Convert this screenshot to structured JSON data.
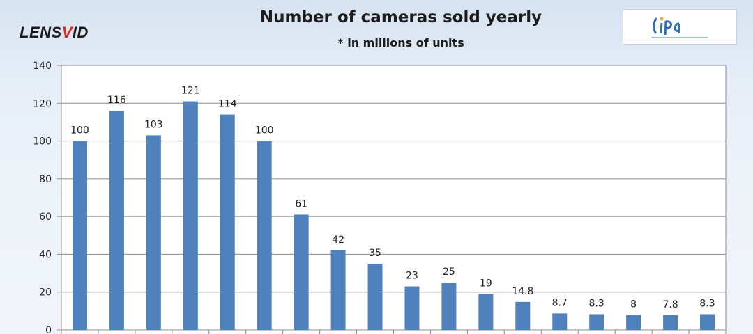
{
  "header": {
    "logo_text_a": "LENS",
    "logo_text_b": "V",
    "logo_text_c": "ID",
    "title": "Number of cameras sold yearly",
    "subtitle": "* in millions of units",
    "cipa_logo_icon": "cipa-logo-icon"
  },
  "colors": {
    "bar": "#4f81bd",
    "grid": "#8c8c8c",
    "plot_bg": "#ffffff",
    "logo_accent": "#e0261c",
    "cipa_blue": "#2e6fb6",
    "cipa_orange": "#f0a030"
  },
  "chart_data": {
    "type": "bar",
    "title": "Number of cameras sold yearly",
    "subtitle": "* in millions of units",
    "xlabel": "",
    "ylabel": "",
    "categories": [
      "",
      "",
      "",
      "",
      "",
      "",
      "",
      "",
      "",
      "",
      "",
      "",
      "",
      "",
      "",
      "",
      "",
      ""
    ],
    "values": [
      100,
      116,
      103,
      121,
      114,
      100,
      61,
      42,
      35,
      23,
      25,
      19,
      14.8,
      8.7,
      8.3,
      8,
      7.8,
      8.3
    ],
    "data_labels": [
      "100",
      "116",
      "103",
      "121",
      "114",
      "100",
      "61",
      "42",
      "35",
      "23",
      "25",
      "19",
      "14.8",
      "8.7",
      "8.3",
      "8",
      "7.8",
      "8.3"
    ],
    "ylim": [
      0,
      140
    ],
    "yticks": [
      0,
      20,
      40,
      60,
      80,
      100,
      120,
      140
    ],
    "grid": true,
    "legend": "none"
  }
}
